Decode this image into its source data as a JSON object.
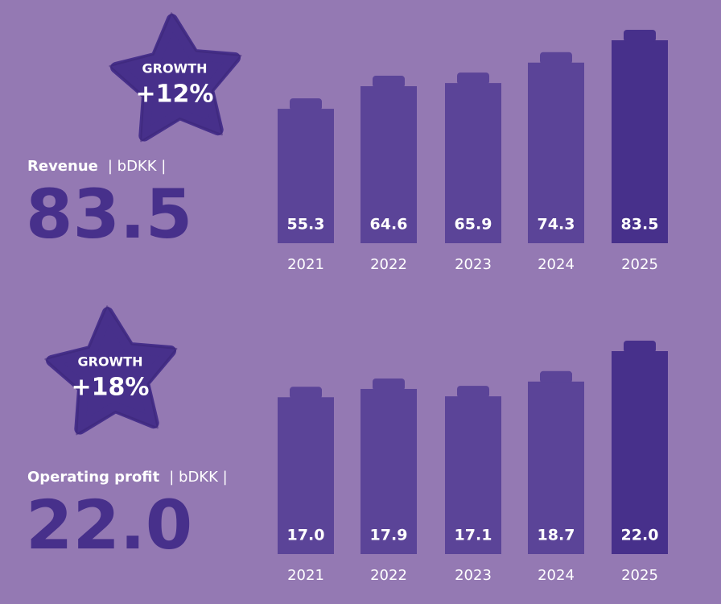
{
  "chart_data": [
    {
      "type": "bar",
      "title": "Revenue",
      "unit": "| bDKK |",
      "badge_label": "GROWTH",
      "badge_value": "+12%",
      "categories": [
        "2021",
        "2022",
        "2023",
        "2024",
        "2025"
      ],
      "values": [
        55.3,
        64.6,
        65.9,
        74.3,
        83.5
      ],
      "value_labels": [
        "55.3",
        "64.6",
        "65.9",
        "74.3",
        "83.5"
      ],
      "colors": [
        "#5b4498",
        "#5b4498",
        "#5b4498",
        "#5b4498",
        "#47308b"
      ]
    },
    {
      "type": "bar",
      "title": "Operating profit",
      "unit": "| bDKK |",
      "badge_label": "GROWTH",
      "badge_value": "+18%",
      "categories": [
        "2021",
        "2022",
        "2023",
        "2024",
        "2025"
      ],
      "values": [
        17.0,
        17.9,
        17.1,
        18.7,
        22.0
      ],
      "value_labels": [
        "17.0",
        "17.9",
        "17.1",
        "18.7",
        "22.0"
      ],
      "colors": [
        "#5b4498",
        "#5b4498",
        "#5b4498",
        "#5b4498",
        "#47308b"
      ]
    }
  ]
}
